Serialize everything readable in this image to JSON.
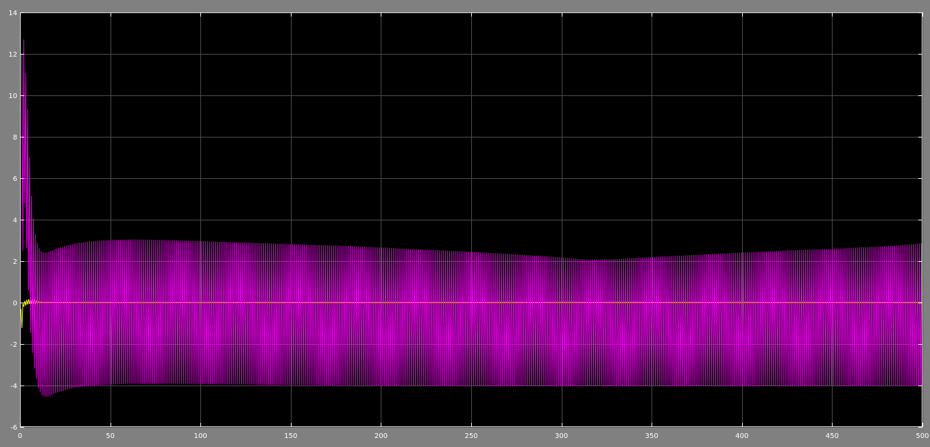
{
  "chart_data": {
    "type": "line",
    "title": "",
    "xlabel": "",
    "ylabel": "",
    "xlim": [
      0,
      500
    ],
    "ylim": [
      -6,
      14
    ],
    "x_ticks": [
      0,
      50,
      100,
      150,
      200,
      250,
      300,
      350,
      400,
      450,
      500
    ],
    "x_tick_labels": [
      "0",
      "50",
      "100",
      "150",
      "200",
      "250",
      "300",
      "350",
      "400",
      "450",
      "500"
    ],
    "y_ticks": [
      -6,
      -4,
      -2,
      0,
      2,
      4,
      6,
      8,
      10,
      12,
      14
    ],
    "y_tick_labels": [
      "-6",
      "-4",
      "-2",
      "0",
      "2",
      "4",
      "6",
      "8",
      "10",
      "12",
      "14"
    ],
    "grid": true,
    "legend": "none",
    "background_color": "#000000",
    "figure_color": "#808080",
    "grid_color": "#4d4d4d",
    "series": [
      {
        "color": "#ff00ff",
        "style": "oscillating",
        "upper_envelope": {
          "x": [
            1,
            2,
            4,
            6,
            8,
            10,
            12,
            14,
            16,
            20,
            30,
            40,
            50,
            60,
            70,
            80,
            100,
            120,
            150,
            180,
            200,
            250,
            280,
            300,
            315,
            330,
            350,
            380,
            400,
            420,
            450,
            480,
            499.5,
            500
          ],
          "y": [
            12.0,
            12.8,
            9.8,
            5.5,
            3.5,
            2.7,
            2.45,
            2.4,
            2.45,
            2.6,
            2.85,
            2.97,
            3.02,
            3.05,
            3.04,
            3.02,
            2.97,
            2.91,
            2.82,
            2.74,
            2.66,
            2.45,
            2.3,
            2.18,
            2.07,
            2.1,
            2.2,
            2.33,
            2.42,
            2.5,
            2.6,
            2.72,
            2.86,
            4.0
          ]
        },
        "lower_envelope": {
          "x": [
            1,
            2,
            4,
            6,
            8,
            10,
            12,
            14,
            16,
            20,
            30,
            40,
            50,
            60,
            70,
            80,
            100,
            150,
            200,
            250,
            300,
            350,
            400,
            450,
            500
          ],
          "y": [
            -1.5,
            6.0,
            2.0,
            -1.8,
            -3.2,
            -4.1,
            -4.45,
            -4.55,
            -4.52,
            -4.35,
            -4.1,
            -4.0,
            -3.95,
            -3.92,
            -3.91,
            -3.91,
            -3.93,
            -3.97,
            -4.0,
            -4.02,
            -4.03,
            -4.03,
            -4.02,
            -4.02,
            -4.0
          ]
        }
      },
      {
        "color": "#ffff00",
        "style": "oscillating",
        "upper_envelope": {
          "x": [
            0.5,
            2,
            4,
            6,
            8,
            10,
            12,
            500
          ],
          "y": [
            -0.3,
            0.05,
            0.15,
            0.2,
            0.12,
            0.05,
            0.02,
            0.02
          ]
        },
        "lower_envelope": {
          "x": [
            0.5,
            2,
            4,
            6,
            8,
            10,
            12,
            500
          ],
          "y": [
            -1.8,
            -0.2,
            -0.1,
            -0.05,
            -0.05,
            -0.02,
            -0.01,
            -0.01
          ]
        }
      }
    ]
  }
}
